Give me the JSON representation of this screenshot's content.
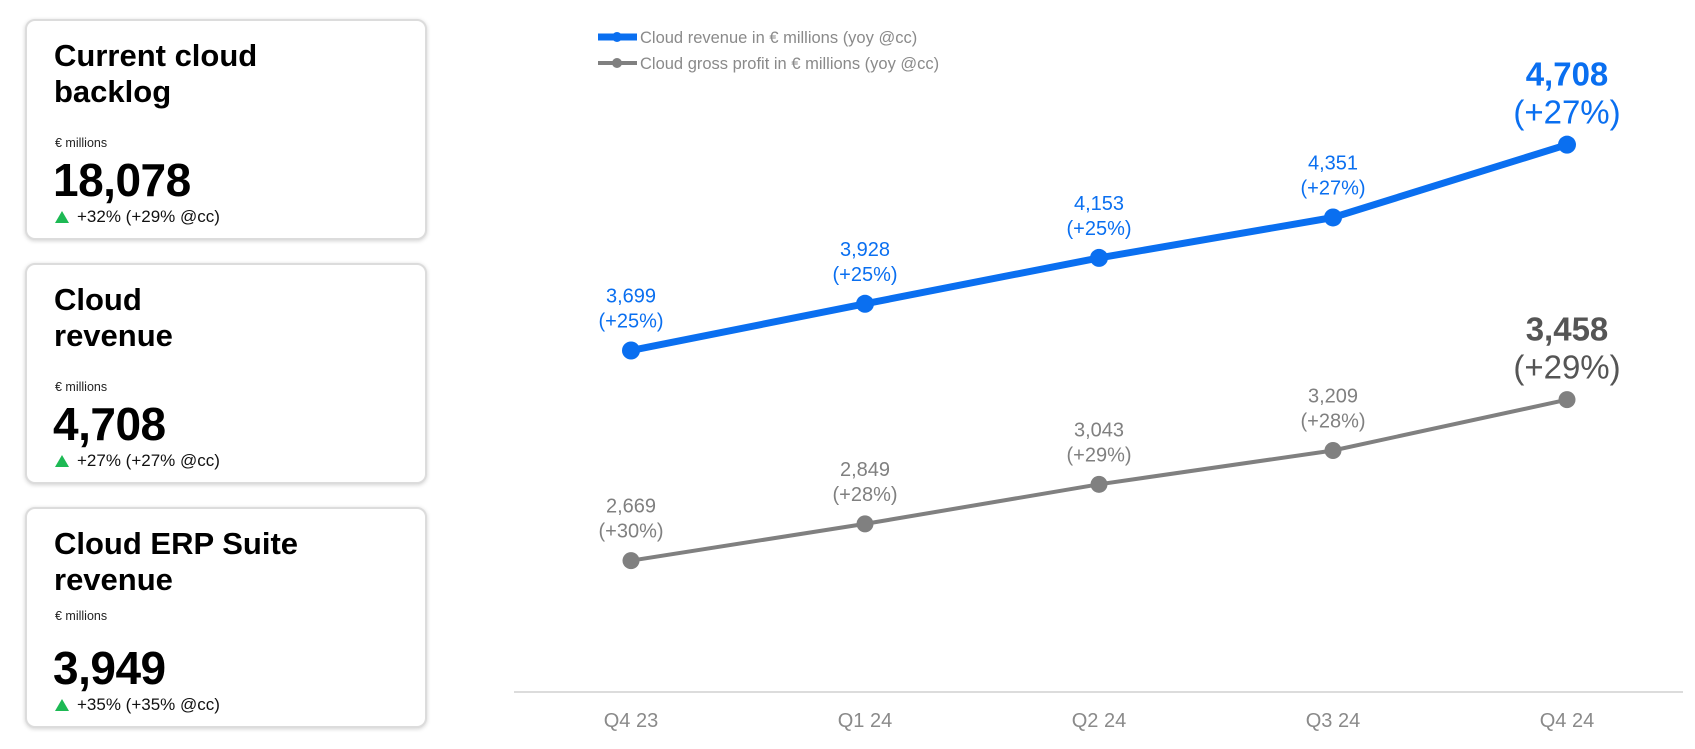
{
  "kpi_cards": [
    {
      "title": "Current cloud backlog",
      "unit": "€ millions",
      "value": "18,078",
      "change": "+32% (+29% @cc)"
    },
    {
      "title": "Cloud revenue",
      "unit": "€ millions",
      "value": "4,708",
      "change": "+27% (+27% @cc)"
    },
    {
      "title": "Cloud ERP Suite revenue",
      "unit": "€ millions",
      "value": "3,949",
      "change": "+35% (+35% @cc)"
    }
  ],
  "colors": {
    "revenue": "#0a6ff0",
    "gross_profit": "#808080",
    "gross_profit_last_label": "#555555",
    "axis": "#d0d0d0",
    "up_arrow": "#1db954"
  },
  "chart_data": {
    "type": "line",
    "categories": [
      "Q4 23",
      "Q1 24",
      "Q2 24",
      "Q3 24",
      "Q4 24"
    ],
    "series": [
      {
        "name": "Cloud revenue in € millions (yoy @cc)",
        "values": [
          3699,
          3928,
          4153,
          4351,
          4708
        ],
        "value_labels": [
          "3,699",
          "3,928",
          "4,153",
          "4,351",
          "4,708"
        ],
        "growth_labels": [
          "(+25%)",
          "(+25%)",
          "(+25%)",
          "(+27%)",
          "(+27%)"
        ]
      },
      {
        "name": "Cloud gross profit in € millions (yoy @cc)",
        "values": [
          2669,
          2849,
          3043,
          3209,
          3458
        ],
        "value_labels": [
          "2,669",
          "2,849",
          "3,043",
          "3,209",
          "3,458"
        ],
        "growth_labels": [
          "(+30%)",
          "(+28%)",
          "(+29%)",
          "(+28%)",
          "(+29%)"
        ]
      }
    ],
    "legend_position": "top-left",
    "grid": false
  }
}
